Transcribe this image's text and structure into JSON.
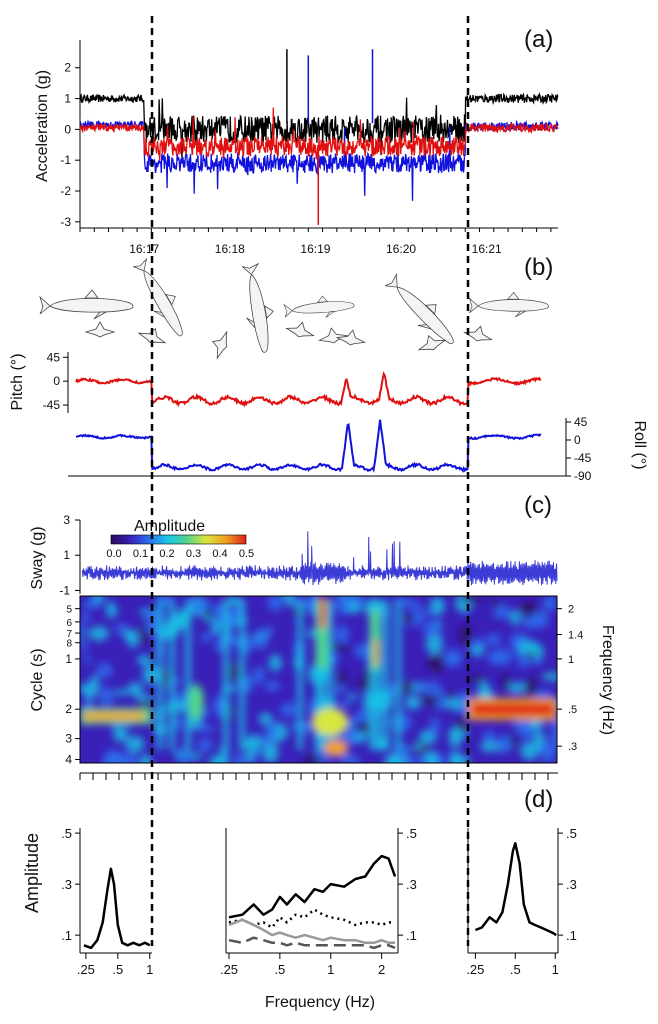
{
  "panel_labels": [
    "(a)",
    "(b)",
    "(c)",
    "(d)"
  ],
  "colorbar": {
    "title": "Amplitude",
    "ticks": [
      "0.0",
      "0.1",
      "0.2",
      "0.3",
      "0.4",
      "0.5"
    ],
    "range": [
      0,
      0.5
    ],
    "colors": [
      "#2b0a5a",
      "#3a1fb8",
      "#2a6ff0",
      "#19c7e6",
      "#4fd48c",
      "#d8e640",
      "#f0a020",
      "#e0201a"
    ]
  },
  "chart_data": [
    {
      "id": "a",
      "type": "line",
      "ylabel": "Acceleration (g)",
      "ylim": [
        -3.2,
        2.9
      ],
      "yticks": [
        "2",
        "1",
        "0",
        "-1",
        "-2",
        "-3"
      ],
      "xlim": [
        "16:16:15",
        "16:21:50"
      ],
      "xticks": [
        "16:17",
        "16:18",
        "16:19",
        "16:20",
        "16:21"
      ],
      "markers": [
        "16:17",
        "16:20:45"
      ],
      "series": [
        {
          "color": "#000000",
          "base_before": 1.0,
          "base_during": 0.0,
          "base_after": 1.0
        },
        {
          "color": "#1111dd",
          "base_before": 0.15,
          "base_during": -1.1,
          "base_after": 0.1
        },
        {
          "color": "#e01010",
          "base_before": 0.05,
          "base_during": -0.55,
          "base_after": 0.05
        }
      ],
      "spikes": [
        {
          "time": "16:19:02",
          "value": -3.1,
          "color": "#e01010"
        },
        {
          "time": "16:18:55",
          "value": 2.4,
          "color": "#1111dd"
        },
        {
          "time": "16:19:40",
          "value": 2.6,
          "color": "#1111dd"
        },
        {
          "time": "16:18:40",
          "value": 2.6,
          "color": "#000000"
        }
      ]
    },
    {
      "id": "b-pitch",
      "type": "line",
      "ylabel": "Pitch (°)",
      "ylim": [
        -60,
        55
      ],
      "yticks": [
        "45",
        "0",
        "-45"
      ],
      "series": [
        {
          "color": "#e01010"
        }
      ],
      "level_before": 0,
      "level_during": -36,
      "level_after": 0
    },
    {
      "id": "b-roll",
      "type": "line",
      "ylabel": "Roll (°)",
      "ylim": [
        -90,
        55
      ],
      "yticks": [
        "45",
        "0",
        "-45",
        "-90"
      ],
      "series": [
        {
          "color": "#1111dd"
        }
      ],
      "level_before": 8,
      "level_during": -68,
      "level_after": 8
    },
    {
      "id": "c-sway",
      "type": "line",
      "ylabel": "Sway (g)",
      "ylim": [
        -1.2,
        3
      ],
      "yticks": [
        "3",
        "1",
        "-1"
      ],
      "series": [
        {
          "color": "#3b3bd6"
        }
      ]
    },
    {
      "id": "c-wavelet",
      "type": "heatmap",
      "ylabel": "Cycle (s)",
      "y2label": "Frequency (Hz)",
      "yticks": [
        "5",
        "6",
        "7",
        "8",
        "1",
        "2",
        "3",
        "4"
      ],
      "y2ticks": [
        "2",
        "1.4",
        "1",
        ".5",
        ".3"
      ],
      "ridges": [
        {
          "segment": "before",
          "cycle_s": 2.2,
          "amplitude": 0.4
        },
        {
          "segment": "after",
          "cycle_s": 2.0,
          "amplitude": 0.5
        }
      ]
    },
    {
      "id": "d-left",
      "type": "line",
      "ylabel": "Amplitude",
      "xlim": [
        0.22,
        1.05
      ],
      "ylim": [
        0.03,
        0.52
      ],
      "yticks": [
        ".5",
        ".3",
        ".1"
      ],
      "xticks": [
        ".25",
        ".5",
        "1"
      ],
      "series": [
        {
          "color": "#000000",
          "style": "solid",
          "x": [
            0.24,
            0.28,
            0.32,
            0.36,
            0.4,
            0.43,
            0.46,
            0.5,
            0.55,
            0.62,
            0.7,
            0.8,
            0.9,
            1.0
          ],
          "y": [
            0.06,
            0.05,
            0.08,
            0.15,
            0.28,
            0.36,
            0.3,
            0.14,
            0.07,
            0.06,
            0.07,
            0.06,
            0.07,
            0.06
          ]
        }
      ]
    },
    {
      "id": "d-middle",
      "type": "line",
      "xlabel": "Frequency (Hz)",
      "xlim": [
        0.24,
        2.5
      ],
      "ylim": [
        0.03,
        0.52
      ],
      "xticks": [
        ".25",
        ".5",
        "1",
        "2"
      ],
      "series": [
        {
          "color": "#000000",
          "style": "solid",
          "x": [
            0.25,
            0.3,
            0.35,
            0.4,
            0.45,
            0.5,
            0.55,
            0.62,
            0.7,
            0.8,
            0.9,
            1.0,
            1.2,
            1.4,
            1.6,
            1.8,
            2.0,
            2.2,
            2.4
          ],
          "y": [
            0.17,
            0.18,
            0.22,
            0.18,
            0.2,
            0.25,
            0.22,
            0.26,
            0.23,
            0.28,
            0.27,
            0.3,
            0.29,
            0.32,
            0.33,
            0.38,
            0.41,
            0.4,
            0.33
          ]
        },
        {
          "color": "#000000",
          "style": "dotted",
          "x": [
            0.25,
            0.3,
            0.35,
            0.4,
            0.45,
            0.5,
            0.55,
            0.62,
            0.7,
            0.8,
            0.9,
            1.0,
            1.2,
            1.4,
            1.6,
            1.8,
            2.0,
            2.2,
            2.4
          ],
          "y": [
            0.15,
            0.16,
            0.14,
            0.15,
            0.13,
            0.17,
            0.15,
            0.18,
            0.17,
            0.2,
            0.18,
            0.17,
            0.16,
            0.14,
            0.15,
            0.15,
            0.14,
            0.15,
            0.15
          ]
        },
        {
          "color": "#999999",
          "style": "solid",
          "x": [
            0.25,
            0.3,
            0.35,
            0.4,
            0.45,
            0.5,
            0.55,
            0.62,
            0.7,
            0.8,
            0.9,
            1.0,
            1.2,
            1.4,
            1.6,
            1.8,
            2.0,
            2.2,
            2.4
          ],
          "y": [
            0.14,
            0.16,
            0.14,
            0.12,
            0.1,
            0.11,
            0.1,
            0.09,
            0.1,
            0.09,
            0.08,
            0.09,
            0.08,
            0.08,
            0.07,
            0.07,
            0.08,
            0.07,
            0.07
          ]
        },
        {
          "color": "#555555",
          "style": "dashed",
          "x": [
            0.25,
            0.3,
            0.35,
            0.4,
            0.45,
            0.5,
            0.55,
            0.62,
            0.7,
            0.8,
            0.9,
            1.0,
            1.2,
            1.4,
            1.6,
            1.8,
            2.0,
            2.2,
            2.4
          ],
          "y": [
            0.08,
            0.07,
            0.09,
            0.08,
            0.07,
            0.07,
            0.06,
            0.07,
            0.06,
            0.06,
            0.06,
            0.06,
            0.06,
            0.06,
            0.06,
            0.05,
            0.06,
            0.06,
            0.05
          ]
        }
      ]
    },
    {
      "id": "d-right",
      "type": "line",
      "xlim": [
        0.22,
        1.05
      ],
      "ylim": [
        0.03,
        0.52
      ],
      "yticks": [
        ".5",
        ".3",
        ".1"
      ],
      "xticks": [
        ".25",
        ".5",
        "1"
      ],
      "series": [
        {
          "color": "#000000",
          "style": "solid",
          "x": [
            0.25,
            0.28,
            0.32,
            0.36,
            0.4,
            0.44,
            0.48,
            0.5,
            0.54,
            0.58,
            0.64,
            0.7,
            0.78,
            0.86,
            0.95,
            1.02
          ],
          "y": [
            0.12,
            0.13,
            0.17,
            0.15,
            0.19,
            0.3,
            0.43,
            0.46,
            0.38,
            0.22,
            0.15,
            0.14,
            0.13,
            0.12,
            0.11,
            0.1
          ]
        }
      ]
    }
  ]
}
